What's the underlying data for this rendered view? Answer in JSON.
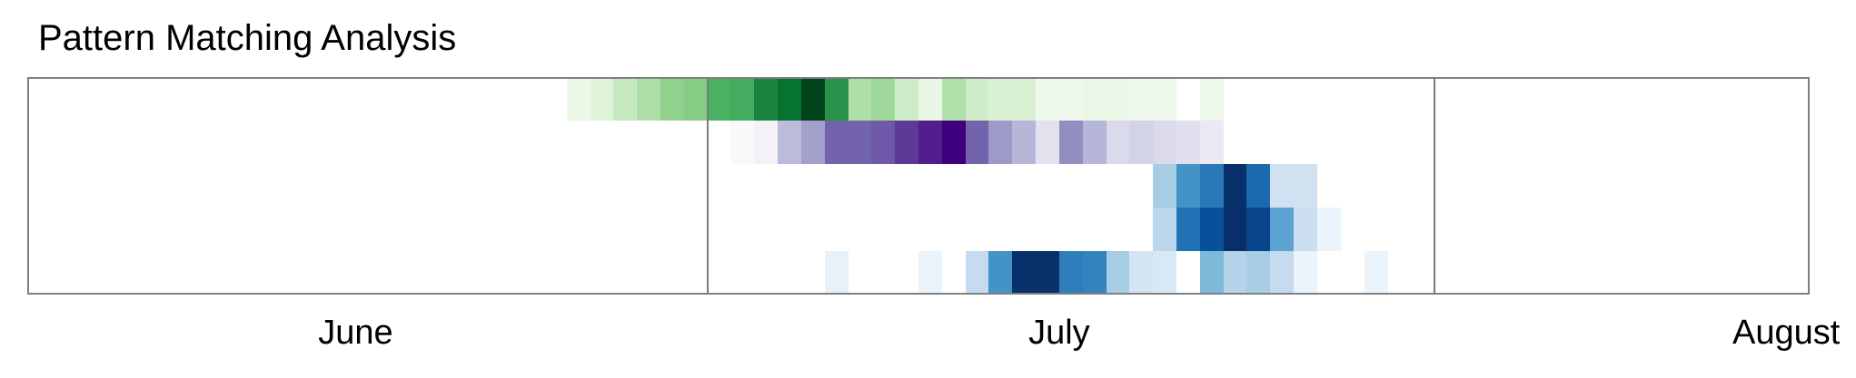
{
  "chart_data": {
    "type": "heatmap",
    "title": "Pattern Matching Analysis",
    "x_axis": {
      "start": "2023-05-18",
      "end": "2023-08-02",
      "ticks": [
        {
          "label": "June",
          "date": "2023-06-01"
        },
        {
          "label": "July",
          "date": "2023-07-01"
        },
        {
          "label": "August",
          "date": "2023-08-01"
        }
      ],
      "month_boundaries": [
        "2023-06-16",
        "2023-07-17"
      ]
    },
    "value_range": [
      0,
      1
    ],
    "rows": [
      {
        "colormap": "Greens",
        "cells": [
          {
            "date": "2023-06-10",
            "value": 0.08
          },
          {
            "date": "2023-06-11",
            "value": 0.15
          },
          {
            "date": "2023-06-12",
            "value": 0.25
          },
          {
            "date": "2023-06-13",
            "value": 0.33
          },
          {
            "date": "2023-06-14",
            "value": 0.42
          },
          {
            "date": "2023-06-15",
            "value": 0.45
          },
          {
            "date": "2023-06-16",
            "value": 0.6
          },
          {
            "date": "2023-06-17",
            "value": 0.62
          },
          {
            "date": "2023-06-18",
            "value": 0.78
          },
          {
            "date": "2023-06-19",
            "value": 0.85
          },
          {
            "date": "2023-06-20",
            "value": 1.0
          },
          {
            "date": "2023-06-21",
            "value": 0.72
          },
          {
            "date": "2023-06-22",
            "value": 0.33
          },
          {
            "date": "2023-06-23",
            "value": 0.38
          },
          {
            "date": "2023-06-24",
            "value": 0.22
          },
          {
            "date": "2023-06-25",
            "value": 0.1
          },
          {
            "date": "2023-06-26",
            "value": 0.32
          },
          {
            "date": "2023-06-27",
            "value": 0.22
          },
          {
            "date": "2023-06-28",
            "value": 0.17
          },
          {
            "date": "2023-06-29",
            "value": 0.17
          },
          {
            "date": "2023-06-30",
            "value": 0.06
          },
          {
            "date": "2023-07-01",
            "value": 0.06
          },
          {
            "date": "2023-07-02",
            "value": 0.08
          },
          {
            "date": "2023-07-03",
            "value": 0.08
          },
          {
            "date": "2023-07-04",
            "value": 0.05
          },
          {
            "date": "2023-07-05",
            "value": 0.05
          },
          {
            "date": "2023-07-07",
            "value": 0.06
          }
        ]
      },
      {
        "colormap": "Purples",
        "cells": [
          {
            "date": "2023-06-17",
            "value": 0.03
          },
          {
            "date": "2023-06-18",
            "value": 0.08
          },
          {
            "date": "2023-06-19",
            "value": 0.38
          },
          {
            "date": "2023-06-20",
            "value": 0.48
          },
          {
            "date": "2023-06-21",
            "value": 0.7
          },
          {
            "date": "2023-06-22",
            "value": 0.7
          },
          {
            "date": "2023-06-23",
            "value": 0.73
          },
          {
            "date": "2023-06-24",
            "value": 0.82
          },
          {
            "date": "2023-06-25",
            "value": 0.9
          },
          {
            "date": "2023-06-26",
            "value": 1.0
          },
          {
            "date": "2023-06-27",
            "value": 0.7
          },
          {
            "date": "2023-06-28",
            "value": 0.5
          },
          {
            "date": "2023-06-29",
            "value": 0.4
          },
          {
            "date": "2023-06-30",
            "value": 0.2
          },
          {
            "date": "2023-07-01",
            "value": 0.55
          },
          {
            "date": "2023-07-02",
            "value": 0.4
          },
          {
            "date": "2023-07-03",
            "value": 0.25
          },
          {
            "date": "2023-07-04",
            "value": 0.28
          },
          {
            "date": "2023-07-05",
            "value": 0.25
          },
          {
            "date": "2023-07-06",
            "value": 0.22
          },
          {
            "date": "2023-07-07",
            "value": 0.15
          }
        ]
      },
      {
        "colormap": "Blues",
        "cells": [
          {
            "date": "2023-07-05",
            "value": 0.35
          },
          {
            "date": "2023-07-06",
            "value": 0.62
          },
          {
            "date": "2023-07-07",
            "value": 0.72
          },
          {
            "date": "2023-07-08",
            "value": 1.0
          },
          {
            "date": "2023-07-09",
            "value": 0.78
          },
          {
            "date": "2023-07-10",
            "value": 0.2
          },
          {
            "date": "2023-07-11",
            "value": 0.2
          }
        ]
      },
      {
        "colormap": "Blues",
        "cells": [
          {
            "date": "2023-07-05",
            "value": 0.28
          },
          {
            "date": "2023-07-06",
            "value": 0.75
          },
          {
            "date": "2023-07-07",
            "value": 0.88
          },
          {
            "date": "2023-07-08",
            "value": 1.0
          },
          {
            "date": "2023-07-09",
            "value": 0.92
          },
          {
            "date": "2023-07-10",
            "value": 0.55
          },
          {
            "date": "2023-07-11",
            "value": 0.22
          },
          {
            "date": "2023-07-12",
            "value": 0.06
          }
        ]
      },
      {
        "colormap": "Blues",
        "cells": [
          {
            "date": "2023-06-21",
            "value": 0.08
          },
          {
            "date": "2023-06-25",
            "value": 0.06
          },
          {
            "date": "2023-06-27",
            "value": 0.25
          },
          {
            "date": "2023-06-28",
            "value": 0.62
          },
          {
            "date": "2023-06-29",
            "value": 1.0
          },
          {
            "date": "2023-06-30",
            "value": 1.0
          },
          {
            "date": "2023-07-01",
            "value": 0.7
          },
          {
            "date": "2023-07-02",
            "value": 0.68
          },
          {
            "date": "2023-07-03",
            "value": 0.35
          },
          {
            "date": "2023-07-04",
            "value": 0.18
          },
          {
            "date": "2023-07-05",
            "value": 0.15
          },
          {
            "date": "2023-07-07",
            "value": 0.45
          },
          {
            "date": "2023-07-08",
            "value": 0.3
          },
          {
            "date": "2023-07-09",
            "value": 0.35
          },
          {
            "date": "2023-07-10",
            "value": 0.25
          },
          {
            "date": "2023-07-11",
            "value": 0.06
          },
          {
            "date": "2023-07-14",
            "value": 0.06
          }
        ]
      }
    ]
  },
  "colors": {
    "frame": "#808080",
    "month_line": "#7a7a7a",
    "text": "#000000"
  }
}
